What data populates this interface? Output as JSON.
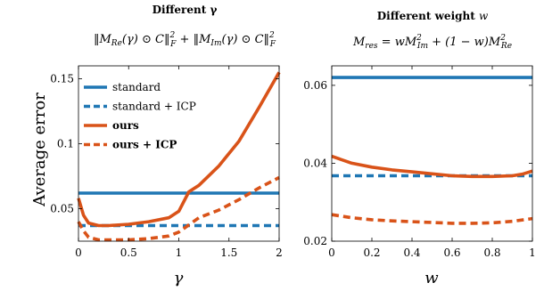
{
  "chart_data": [
    {
      "type": "line",
      "title": "Different γ",
      "subtitle": "‖M_Re(γ) ⊙ C‖²_F + ‖M_Im(γ) ⊙ C‖²_F",
      "xlabel": "γ",
      "ylabel": "Average error",
      "xlim": [
        0,
        2
      ],
      "ylim": [
        0.025,
        0.16
      ],
      "xticks": [
        0,
        0.5,
        1,
        1.5,
        2
      ],
      "xtick_labels": [
        "0",
        "0.5",
        "1",
        "1.5",
        "2"
      ],
      "yticks": [
        0.05,
        0.1,
        0.15
      ],
      "ytick_labels": [
        "0.05",
        "0.1",
        "0.15"
      ],
      "legend_position": "upper-left",
      "series": [
        {
          "name": "standard",
          "color": "#1f77b4",
          "dashed": false,
          "x": [
            0,
            2
          ],
          "y": [
            0.062,
            0.062
          ]
        },
        {
          "name": "standard + ICP",
          "color": "#1f77b4",
          "dashed": true,
          "x": [
            0,
            2
          ],
          "y": [
            0.037,
            0.037
          ]
        },
        {
          "name": "ours",
          "color": "#d95319",
          "dashed": false,
          "x": [
            0,
            0.05,
            0.1,
            0.2,
            0.3,
            0.5,
            0.7,
            0.9,
            1.0,
            1.1,
            1.2,
            1.4,
            1.6,
            1.8,
            2.0
          ],
          "y": [
            0.058,
            0.045,
            0.039,
            0.037,
            0.037,
            0.038,
            0.04,
            0.043,
            0.048,
            0.063,
            0.068,
            0.083,
            0.102,
            0.128,
            0.155
          ]
        },
        {
          "name": "ours + ICP",
          "color": "#d95319",
          "dashed": true,
          "x": [
            0,
            0.05,
            0.1,
            0.2,
            0.3,
            0.5,
            0.7,
            0.9,
            1.0,
            1.2,
            1.4,
            1.6,
            1.8,
            2.0
          ],
          "y": [
            0.04,
            0.033,
            0.028,
            0.026,
            0.026,
            0.026,
            0.027,
            0.029,
            0.032,
            0.043,
            0.049,
            0.057,
            0.066,
            0.074
          ]
        }
      ]
    },
    {
      "type": "line",
      "title": "Different weight w",
      "subtitle": "M_res = w M²_Im + (1 − w) M²_Re",
      "xlabel": "w",
      "ylabel": "",
      "xlim": [
        0,
        1
      ],
      "ylim": [
        0.02,
        0.065
      ],
      "xticks": [
        0,
        0.2,
        0.4,
        0.6,
        0.8,
        1
      ],
      "xtick_labels": [
        "0",
        "0.2",
        "0.4",
        "0.6",
        "0.8",
        "1"
      ],
      "yticks": [
        0.02,
        0.04,
        0.06
      ],
      "ytick_labels": [
        "0.02",
        "0.04",
        "0.06"
      ],
      "series": [
        {
          "name": "standard",
          "color": "#1f77b4",
          "dashed": false,
          "x": [
            0,
            1
          ],
          "y": [
            0.062,
            0.062
          ]
        },
        {
          "name": "standard + ICP",
          "color": "#1f77b4",
          "dashed": true,
          "x": [
            0,
            1
          ],
          "y": [
            0.0368,
            0.0368
          ]
        },
        {
          "name": "ours",
          "color": "#d95319",
          "dashed": false,
          "x": [
            0,
            0.1,
            0.2,
            0.3,
            0.4,
            0.5,
            0.6,
            0.7,
            0.8,
            0.9,
            0.95,
            1.0
          ],
          "y": [
            0.0418,
            0.04,
            0.039,
            0.0383,
            0.0378,
            0.0373,
            0.0368,
            0.0366,
            0.0366,
            0.0368,
            0.0372,
            0.038
          ]
        },
        {
          "name": "ours + ICP",
          "color": "#d95319",
          "dashed": true,
          "x": [
            0,
            0.1,
            0.2,
            0.3,
            0.4,
            0.5,
            0.6,
            0.7,
            0.8,
            0.9,
            1.0
          ],
          "y": [
            0.0268,
            0.026,
            0.0255,
            0.0252,
            0.025,
            0.0248,
            0.0246,
            0.0246,
            0.0247,
            0.0251,
            0.0258
          ]
        }
      ]
    }
  ]
}
